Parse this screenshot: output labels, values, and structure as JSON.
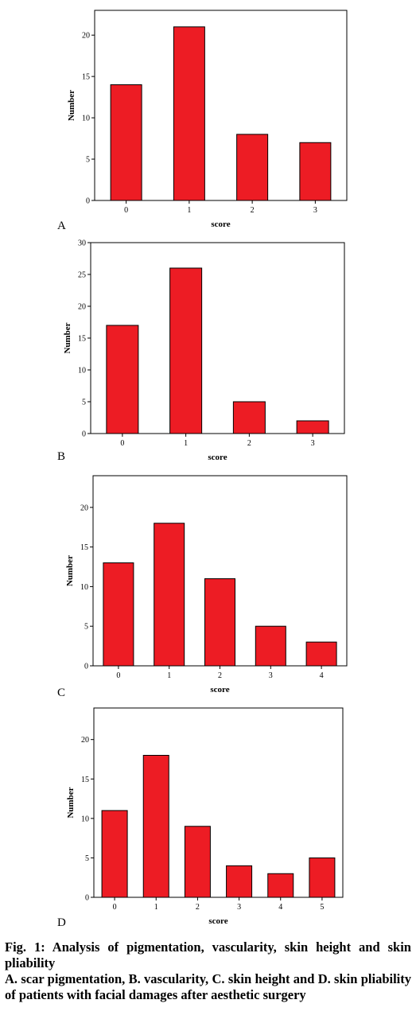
{
  "colors": {
    "bar": "#ed1c24",
    "axis": "#000000"
  },
  "chart_data": [
    {
      "type": "bar",
      "panel_label": "A",
      "categories": [
        "0",
        "1",
        "2",
        "3"
      ],
      "values": [
        14,
        21,
        8,
        7
      ],
      "xlabel": "score",
      "ylabel": "Number",
      "yticks": [
        0,
        5,
        10,
        15,
        20
      ],
      "ylim": [
        0,
        23
      ],
      "grid": false
    },
    {
      "type": "bar",
      "panel_label": "B",
      "categories": [
        "0",
        "1",
        "2",
        "3"
      ],
      "values": [
        17,
        26,
        5,
        2
      ],
      "xlabel": "score",
      "ylabel": "Number",
      "yticks": [
        0,
        5,
        10,
        15,
        20,
        25,
        30
      ],
      "ylim": [
        0,
        30
      ],
      "grid": false
    },
    {
      "type": "bar",
      "panel_label": "C",
      "categories": [
        "0",
        "1",
        "2",
        "3",
        "4"
      ],
      "values": [
        13,
        18,
        11,
        5,
        3
      ],
      "xlabel": "score",
      "ylabel": "Number",
      "yticks": [
        0,
        5,
        10,
        15,
        20
      ],
      "ylim": [
        0,
        24
      ],
      "grid": false
    },
    {
      "type": "bar",
      "panel_label": "D",
      "categories": [
        "0",
        "1",
        "2",
        "3",
        "4",
        "5"
      ],
      "values": [
        11,
        18,
        9,
        4,
        3,
        5
      ],
      "xlabel": "score",
      "ylabel": "Number",
      "yticks": [
        0,
        5,
        10,
        15,
        20
      ],
      "ylim": [
        0,
        24
      ],
      "grid": false
    }
  ],
  "caption": {
    "title": "Fig. 1: Analysis of pigmentation, vascularity, skin height and skin pliability",
    "body": "A. scar pigmentation, B. vascularity, C. skin height and D. skin pliability of patients with facial damages after aesthetic surgery"
  }
}
